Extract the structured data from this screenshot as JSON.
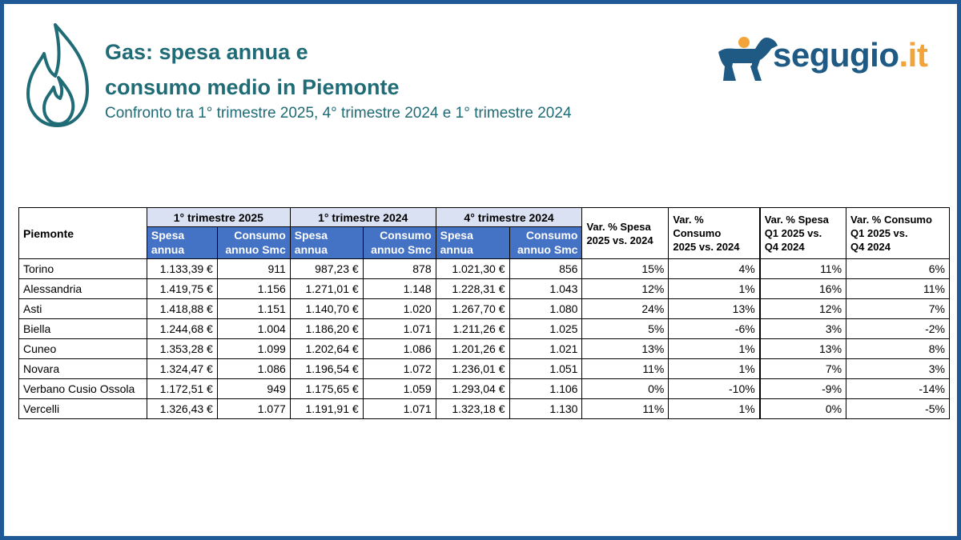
{
  "header": {
    "title_line1": "Gas: spesa annua e",
    "title_line2": "consumo medio in Piemonte",
    "subtitle": "Confronto tra 1° trimestre 2025, 4° trimestre 2024 e 1° trimestre 2024"
  },
  "logo": {
    "name": "segugio",
    "tld": ".it",
    "colors": {
      "primary": "#1f5a84",
      "accent": "#f2a33a"
    }
  },
  "colors": {
    "frame": "#1f5a96",
    "title": "#1f6b76",
    "header_blue": "#4472c4",
    "header_light": "#d9e1f2"
  },
  "table": {
    "region_header": "Piemonte",
    "groups": [
      "1° trimestre 2025",
      "1° trimestre 2024",
      "4° trimestre 2024"
    ],
    "sub_headers": {
      "spesa": [
        "Spesa",
        "annua"
      ],
      "consumo": [
        "Consumo",
        "annuo Smc"
      ]
    },
    "var_headers": [
      [
        "Var. % Spesa",
        "2025 vs. 2024"
      ],
      [
        "Var. %",
        "Consumo",
        "2025 vs. 2024"
      ],
      [
        "Var. % Spesa",
        "Q1 2025 vs.",
        "Q4 2024"
      ],
      [
        "Var. % Consumo",
        "Q1 2025 vs.",
        "Q4 2024"
      ]
    ],
    "rows": [
      [
        "Torino",
        "1.133,39 €",
        "911",
        "987,23 €",
        "878",
        "1.021,30 €",
        "856",
        "15%",
        "4%",
        "11%",
        "6%"
      ],
      [
        "Alessandria",
        "1.419,75 €",
        "1.156",
        "1.271,01 €",
        "1.148",
        "1.228,31 €",
        "1.043",
        "12%",
        "1%",
        "16%",
        "11%"
      ],
      [
        "Asti",
        "1.418,88 €",
        "1.151",
        "1.140,70 €",
        "1.020",
        "1.267,70 €",
        "1.080",
        "24%",
        "13%",
        "12%",
        "7%"
      ],
      [
        "Biella",
        "1.244,68 €",
        "1.004",
        "1.186,20 €",
        "1.071",
        "1.211,26 €",
        "1.025",
        "5%",
        "-6%",
        "3%",
        "-2%"
      ],
      [
        "Cuneo",
        "1.353,28 €",
        "1.099",
        "1.202,64 €",
        "1.086",
        "1.201,26 €",
        "1.021",
        "13%",
        "1%",
        "13%",
        "8%"
      ],
      [
        "Novara",
        "1.324,47 €",
        "1.086",
        "1.196,54 €",
        "1.072",
        "1.236,01 €",
        "1.051",
        "11%",
        "1%",
        "7%",
        "3%"
      ],
      [
        "Verbano Cusio Ossola",
        "1.172,51 €",
        "949",
        "1.175,65 €",
        "1.059",
        "1.293,04 €",
        "1.106",
        "0%",
        "-10%",
        "-9%",
        "-14%"
      ],
      [
        "Vercelli",
        "1.326,43 €",
        "1.077",
        "1.191,91 €",
        "1.071",
        "1.323,18 €",
        "1.130",
        "11%",
        "1%",
        "0%",
        "-5%"
      ]
    ]
  }
}
